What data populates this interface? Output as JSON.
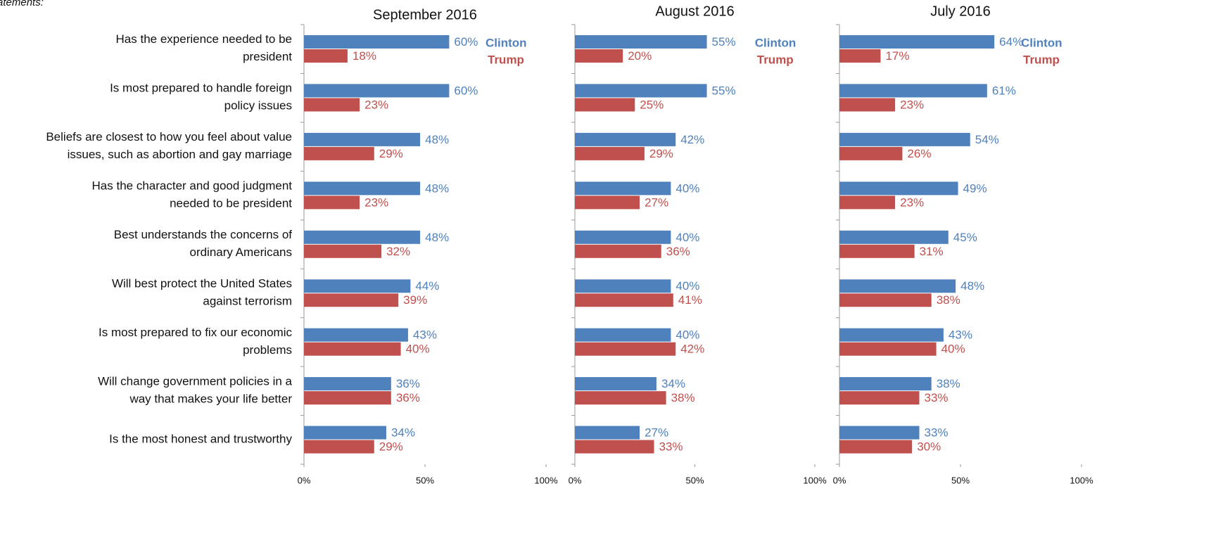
{
  "caption": "atements:",
  "chart_data": [
    {
      "type": "barh",
      "title": "September 2016",
      "categories": [
        "Has the experience needed to be\npresident",
        "Is most prepared to handle foreign\npolicy issues",
        "Beliefs are closest to how you feel about value\nissues, such as abortion and gay marriage",
        "Has the character and good judgment\nneeded to be president",
        "Best understands the concerns of\nordinary Americans",
        "Will best protect the United States\nagainst terrorism",
        "Is most prepared to fix our economic\nproblems",
        "Will change government policies in a\nway that makes your life better",
        "Is the most honest and trustworthy"
      ],
      "series": [
        {
          "name": "Clinton",
          "color": "#4f81bd",
          "values": [
            60,
            60,
            48,
            48,
            48,
            44,
            43,
            36,
            34
          ],
          "value_labels": [
            "60%",
            "60%",
            "48%",
            "48%",
            "48%",
            "44%",
            "43%",
            "36%",
            "34%"
          ]
        },
        {
          "name": "Trump",
          "color": "#c0504d",
          "values": [
            18,
            23,
            29,
            23,
            32,
            39,
            40,
            36,
            29
          ],
          "value_labels": [
            "18%",
            "23%",
            "29%",
            "23%",
            "32%",
            "39%",
            "40%",
            "36%",
            "29%"
          ]
        }
      ],
      "xlim": [
        0,
        100
      ],
      "xticks": [
        {
          "value": 0,
          "label": "0%"
        },
        {
          "value": 50,
          "label": "50%"
        },
        {
          "value": 100,
          "label": "100%"
        }
      ],
      "legend": true
    },
    {
      "type": "barh",
      "title": "August 2016",
      "series": [
        {
          "name": "Clinton",
          "color": "#4f81bd",
          "values": [
            55,
            55,
            42,
            40,
            40,
            40,
            40,
            34,
            27
          ],
          "value_labels": [
            "55%",
            "55%",
            "42%",
            "40%",
            "40%",
            "40%",
            "40%",
            "34%",
            "27%"
          ]
        },
        {
          "name": "Trump",
          "color": "#c0504d",
          "values": [
            20,
            25,
            29,
            27,
            36,
            41,
            42,
            38,
            33
          ],
          "value_labels": [
            "20%",
            "25%",
            "29%",
            "27%",
            "36%",
            "41%",
            "42%",
            "38%",
            "33%"
          ]
        }
      ],
      "xlim": [
        0,
        100
      ],
      "xticks": [
        {
          "value": 0,
          "label": "0%"
        },
        {
          "value": 50,
          "label": "50%"
        },
        {
          "value": 100,
          "label": "100%"
        }
      ],
      "legend": true
    },
    {
      "type": "barh",
      "title": "July 2016",
      "series": [
        {
          "name": "Clinton",
          "color": "#4f81bd",
          "values": [
            64,
            61,
            54,
            49,
            45,
            48,
            43,
            38,
            33
          ],
          "value_labels": [
            "64%",
            "61%",
            "54%",
            "49%",
            "45%",
            "48%",
            "43%",
            "38%",
            "33%"
          ]
        },
        {
          "name": "Trump",
          "color": "#c0504d",
          "values": [
            17,
            23,
            26,
            23,
            31,
            38,
            40,
            33,
            30
          ],
          "value_labels": [
            "17%",
            "23%",
            "26%",
            "23%",
            "31%",
            "38%",
            "40%",
            "33%",
            "30%"
          ]
        }
      ],
      "xlim": [
        0,
        100
      ],
      "xticks": [
        {
          "value": 0,
          "label": "0%"
        },
        {
          "value": 50,
          "label": "50%"
        },
        {
          "value": 100,
          "label": "100%"
        }
      ],
      "legend": true
    }
  ]
}
